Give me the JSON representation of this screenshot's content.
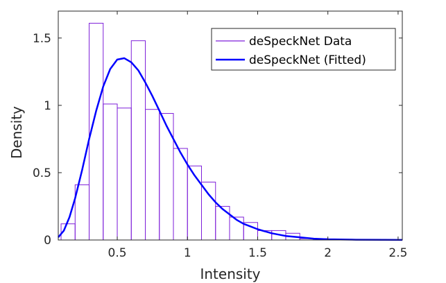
{
  "chart_data": {
    "type": "bar",
    "xlabel": "Intensity",
    "ylabel": "Density",
    "xlim": [
      0.08,
      2.53
    ],
    "ylim": [
      0,
      1.7
    ],
    "xticks": [
      0.5,
      1,
      1.5,
      2,
      2.5
    ],
    "xtick_labels": [
      "0.5",
      "1",
      "1.5",
      "2",
      "2.5"
    ],
    "yticks": [
      0,
      0.5,
      1,
      1.5
    ],
    "ytick_labels": [
      "0",
      "0.5",
      "1",
      "1.5"
    ],
    "grid": false,
    "legend_position": "top-right",
    "series": [
      {
        "name": "deSpeckNet Data",
        "kind": "histogram",
        "color": "#7e1fd9",
        "bin_width": 0.1,
        "bin_edges": [
          0.1,
          0.2,
          0.3,
          0.4,
          0.5,
          0.6,
          0.7,
          0.8,
          0.9,
          1.0,
          1.1,
          1.2,
          1.3,
          1.4,
          1.5,
          1.6,
          1.7,
          1.8,
          1.9,
          2.0
        ],
        "values": [
          0.12,
          0.41,
          1.61,
          1.01,
          0.98,
          1.48,
          0.97,
          0.94,
          0.68,
          0.55,
          0.43,
          0.25,
          0.17,
          0.13,
          0.07,
          0.07,
          0.05,
          0.01,
          0.01
        ]
      },
      {
        "name": "deSpeckNet (Fitted)",
        "kind": "line",
        "color": "#0000ff",
        "x": [
          0.08,
          0.12,
          0.16,
          0.2,
          0.25,
          0.3,
          0.35,
          0.4,
          0.45,
          0.5,
          0.55,
          0.6,
          0.65,
          0.7,
          0.75,
          0.8,
          0.85,
          0.9,
          0.95,
          1.0,
          1.05,
          1.1,
          1.15,
          1.2,
          1.25,
          1.3,
          1.35,
          1.4,
          1.45,
          1.5,
          1.6,
          1.7,
          1.8,
          1.9,
          2.0,
          2.2,
          2.4,
          2.53
        ],
        "y": [
          0.02,
          0.07,
          0.17,
          0.31,
          0.52,
          0.75,
          0.96,
          1.14,
          1.27,
          1.34,
          1.35,
          1.32,
          1.26,
          1.17,
          1.07,
          0.96,
          0.85,
          0.75,
          0.65,
          0.56,
          0.48,
          0.41,
          0.34,
          0.28,
          0.23,
          0.19,
          0.15,
          0.12,
          0.1,
          0.08,
          0.05,
          0.03,
          0.02,
          0.01,
          0.005,
          0.002,
          0.001,
          0.0005
        ]
      }
    ]
  }
}
